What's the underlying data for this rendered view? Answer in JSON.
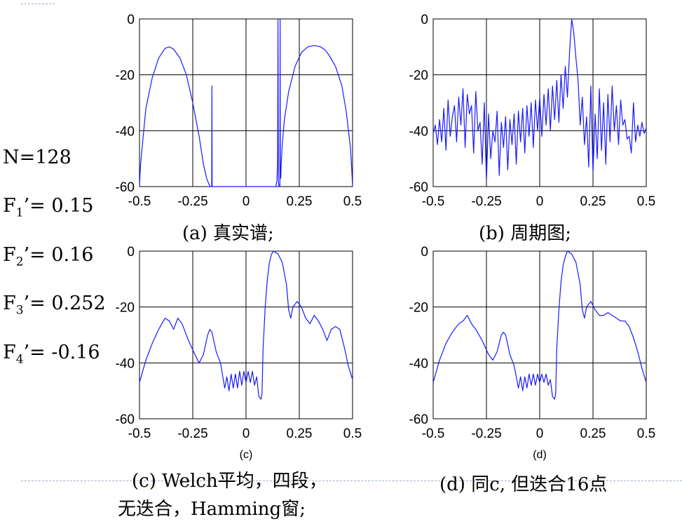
{
  "params": [
    {
      "pre": "N=128",
      "sub": "",
      "post": ""
    },
    {
      "pre": "F",
      "sub": "1",
      "post": "’= 0.15"
    },
    {
      "pre": "F",
      "sub": "2",
      "post": "’= 0.16"
    },
    {
      "pre": "F",
      "sub": "3",
      "post": "’= 0.252"
    },
    {
      "pre": "F",
      "sub": "4",
      "post": "’= -0.16"
    }
  ],
  "captions": {
    "a": "(a) 真实谱;",
    "b": "(b) 周期图;",
    "c_line1": "(c) Welch平均，四段，",
    "c_line2": "无迭合，Hamming窗;",
    "d": "(d) 同c, 但迭合16点"
  },
  "colors": {
    "line": "#1a1aff",
    "grid": "#000000",
    "text": "#000000"
  },
  "chart_data": [
    {
      "id": "a",
      "type": "line",
      "title": "",
      "sublabel": "",
      "xlim": [
        -0.5,
        0.5
      ],
      "ylim": [
        -60,
        0
      ],
      "xticks": [
        "-0.5",
        "-0.25",
        "0",
        "0.25",
        "0.5"
      ],
      "yticks": [
        "0",
        "-20",
        "-40",
        "-60"
      ],
      "grid": true,
      "series": [
        {
          "name": "true spectrum",
          "x": [
            -0.5,
            -0.495,
            -0.47,
            -0.44,
            -0.41,
            -0.38,
            -0.36,
            -0.34,
            -0.31,
            -0.28,
            -0.25,
            -0.22,
            -0.2,
            -0.185,
            -0.175,
            -0.168,
            -0.165,
            -0.163,
            -0.161,
            -0.16,
            -0.159,
            -0.157,
            -0.155,
            -0.15,
            -0.1,
            0,
            0.1,
            0.14,
            0.145,
            0.148,
            0.149,
            0.15,
            0.151,
            0.152,
            0.155,
            0.159,
            0.16,
            0.161,
            0.163,
            0.165,
            0.17,
            0.18,
            0.2,
            0.23,
            0.26,
            0.29,
            0.32,
            0.35,
            0.37,
            0.39,
            0.42,
            0.45,
            0.47,
            0.49,
            0.497,
            0.5
          ],
          "y": [
            -60,
            -52,
            -32,
            -21,
            -14,
            -10.5,
            -10,
            -10.8,
            -14,
            -20,
            -30,
            -42,
            -52,
            -57,
            -59,
            -60,
            -60,
            -60,
            -60,
            -24,
            -60,
            -60,
            -60,
            -60,
            -60,
            -60,
            -60,
            -60,
            -58,
            -52,
            -30,
            0,
            -30,
            -58,
            -60,
            -60,
            0,
            -55,
            -57,
            -52,
            -45,
            -36,
            -26,
            -17,
            -12,
            -10,
            -9.5,
            -10,
            -11,
            -13,
            -17,
            -24,
            -33,
            -46,
            -55,
            -60
          ]
        }
      ]
    },
    {
      "id": "b",
      "type": "line",
      "title": "",
      "sublabel": "",
      "xlim": [
        -0.5,
        0.5
      ],
      "ylim": [
        -60,
        0
      ],
      "xticks": [
        "-0.5",
        "-0.25",
        "0",
        "0.25",
        "0.5"
      ],
      "yticks": [
        "0",
        "-20",
        "-40",
        "-60"
      ],
      "grid": true,
      "series": [
        {
          "name": "periodogram",
          "x": [
            -0.5,
            -0.49,
            -0.48,
            -0.47,
            -0.46,
            -0.45,
            -0.44,
            -0.43,
            -0.42,
            -0.41,
            -0.4,
            -0.39,
            -0.38,
            -0.37,
            -0.36,
            -0.35,
            -0.34,
            -0.33,
            -0.32,
            -0.31,
            -0.3,
            -0.29,
            -0.28,
            -0.27,
            -0.26,
            -0.25,
            -0.24,
            -0.23,
            -0.22,
            -0.21,
            -0.2,
            -0.19,
            -0.18,
            -0.17,
            -0.16,
            -0.15,
            -0.14,
            -0.13,
            -0.12,
            -0.11,
            -0.1,
            -0.09,
            -0.08,
            -0.07,
            -0.06,
            -0.05,
            -0.04,
            -0.03,
            -0.02,
            -0.01,
            0,
            0.01,
            0.02,
            0.03,
            0.04,
            0.05,
            0.06,
            0.07,
            0.08,
            0.09,
            0.1,
            0.11,
            0.12,
            0.13,
            0.14,
            0.15,
            0.16,
            0.17,
            0.18,
            0.19,
            0.2,
            0.21,
            0.22,
            0.23,
            0.24,
            0.25,
            0.26,
            0.27,
            0.28,
            0.29,
            0.3,
            0.31,
            0.32,
            0.33,
            0.34,
            0.35,
            0.36,
            0.37,
            0.38,
            0.39,
            0.4,
            0.41,
            0.42,
            0.43,
            0.44,
            0.45,
            0.46,
            0.47,
            0.48,
            0.49,
            0.5
          ],
          "y": [
            -41,
            -38,
            -45,
            -36,
            -44,
            -32,
            -47,
            -29,
            -42,
            -35,
            -31,
            -44,
            -28,
            -38,
            -25,
            -46,
            -27,
            -34,
            -31,
            -48,
            -26,
            -40,
            -37,
            -52,
            -30,
            -58,
            -34,
            -50,
            -40,
            -44,
            -33,
            -56,
            -37,
            -46,
            -35,
            -54,
            -36,
            -45,
            -34,
            -52,
            -33,
            -44,
            -32,
            -48,
            -31,
            -42,
            -30,
            -46,
            -29,
            -40,
            -28,
            -42,
            -27,
            -38,
            -25,
            -40,
            -24,
            -36,
            -22,
            -37,
            -20,
            -32,
            -17,
            -28,
            -12,
            0,
            -5,
            -14,
            -22,
            -38,
            -28,
            -45,
            -35,
            -53,
            -24,
            -55,
            -34,
            -50,
            -25,
            -47,
            -30,
            -52,
            -27,
            -44,
            -24,
            -40,
            -31,
            -45,
            -29,
            -38,
            -36,
            -43,
            -42,
            -48,
            -30,
            -44,
            -38,
            -42,
            -37,
            -41,
            -39
          ]
        }
      ]
    },
    {
      "id": "c",
      "type": "line",
      "title": "",
      "sublabel": "(c)",
      "xlim": [
        -0.5,
        0.5
      ],
      "ylim": [
        -60,
        0
      ],
      "xticks": [
        "-0.5",
        "-0.25",
        "0",
        "0.25",
        "0.5"
      ],
      "yticks": [
        "0",
        "-20",
        "-40",
        "-60"
      ],
      "grid": true,
      "series": [
        {
          "name": "Welch 4 segments, no overlap, Hamming",
          "x": [
            -0.5,
            -0.47,
            -0.44,
            -0.41,
            -0.38,
            -0.36,
            -0.34,
            -0.32,
            -0.3,
            -0.27,
            -0.24,
            -0.22,
            -0.2,
            -0.18,
            -0.17,
            -0.16,
            -0.14,
            -0.12,
            -0.1,
            -0.09,
            -0.08,
            -0.07,
            -0.06,
            -0.05,
            -0.04,
            -0.03,
            -0.02,
            -0.01,
            0,
            0.01,
            0.02,
            0.03,
            0.04,
            0.05,
            0.06,
            0.07,
            0.075,
            0.08,
            0.09,
            0.1,
            0.11,
            0.12,
            0.13,
            0.15,
            0.17,
            0.19,
            0.2,
            0.21,
            0.22,
            0.24,
            0.26,
            0.28,
            0.3,
            0.32,
            0.34,
            0.36,
            0.38,
            0.4,
            0.42,
            0.44,
            0.46,
            0.48,
            0.5
          ],
          "y": [
            -47,
            -39,
            -33,
            -28,
            -24,
            -25,
            -28,
            -24,
            -26,
            -32,
            -37,
            -40,
            -37,
            -30,
            -28,
            -29,
            -36,
            -40,
            -49,
            -45,
            -50,
            -44,
            -49,
            -44,
            -49,
            -43,
            -48,
            -43,
            -47,
            -43,
            -47,
            -43,
            -48,
            -45,
            -52,
            -53,
            -51,
            -35,
            -20,
            -10,
            -4,
            -1,
            0,
            -1,
            -4,
            -12,
            -21,
            -24,
            -20,
            -18,
            -20,
            -24,
            -26,
            -23,
            -25,
            -28,
            -32,
            -28,
            -27,
            -28,
            -34,
            -41,
            -46
          ]
        }
      ]
    },
    {
      "id": "d",
      "type": "line",
      "title": "",
      "sublabel": "(d)",
      "xlim": [
        -0.5,
        0.5
      ],
      "ylim": [
        -60,
        0
      ],
      "xticks": [
        "-0.5",
        "-0.25",
        "0",
        "0.25",
        "0.5"
      ],
      "yticks": [
        "0",
        "-20",
        "-40",
        "-60"
      ],
      "grid": true,
      "series": [
        {
          "name": "Welch with 16-point overlap",
          "x": [
            -0.5,
            -0.47,
            -0.44,
            -0.41,
            -0.38,
            -0.36,
            -0.34,
            -0.32,
            -0.3,
            -0.27,
            -0.24,
            -0.22,
            -0.2,
            -0.18,
            -0.17,
            -0.16,
            -0.14,
            -0.12,
            -0.1,
            -0.09,
            -0.08,
            -0.07,
            -0.06,
            -0.05,
            -0.04,
            -0.03,
            -0.02,
            -0.01,
            0,
            0.01,
            0.02,
            0.03,
            0.04,
            0.05,
            0.06,
            0.07,
            0.075,
            0.08,
            0.09,
            0.1,
            0.11,
            0.12,
            0.13,
            0.15,
            0.17,
            0.19,
            0.2,
            0.21,
            0.22,
            0.24,
            0.26,
            0.28,
            0.3,
            0.32,
            0.34,
            0.36,
            0.38,
            0.4,
            0.42,
            0.44,
            0.46,
            0.48,
            0.5
          ],
          "y": [
            -47,
            -39,
            -33,
            -29,
            -26,
            -25,
            -23,
            -26,
            -28,
            -32,
            -37,
            -39,
            -36,
            -30,
            -29,
            -30,
            -37,
            -41,
            -49,
            -45,
            -50,
            -45,
            -49,
            -44,
            -48,
            -44,
            -48,
            -44,
            -47,
            -44,
            -47,
            -44,
            -48,
            -46,
            -52,
            -53,
            -51,
            -35,
            -21,
            -11,
            -5,
            -2,
            0,
            -1,
            -4,
            -12,
            -21,
            -24,
            -20,
            -18,
            -21,
            -23,
            -23,
            -22,
            -23,
            -24,
            -25,
            -25,
            -27,
            -31,
            -36,
            -42,
            -47
          ]
        }
      ]
    }
  ]
}
